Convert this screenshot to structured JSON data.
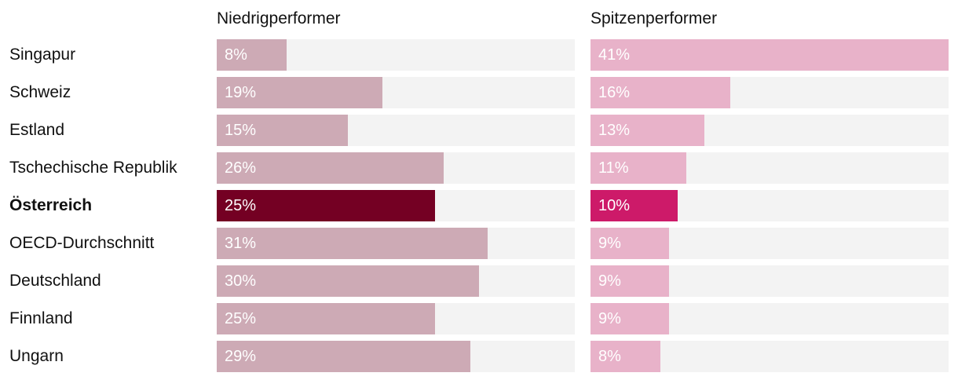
{
  "chart_data": {
    "type": "bar",
    "orientation": "horizontal",
    "value_format": "percent",
    "xlim": [
      0,
      41
    ],
    "categories": [
      "Singapur",
      "Schweiz",
      "Estland",
      "Tschechische Republik",
      "Österreich",
      "OECD-Durchschnitt",
      "Deutschland",
      "Finnland",
      "Ungarn"
    ],
    "highlight_category": "Österreich",
    "series": [
      {
        "name": "Niedrigperformer",
        "values": [
          8,
          19,
          15,
          26,
          25,
          31,
          30,
          25,
          29
        ],
        "color": "#cdaab5",
        "highlight_color": "#740023"
      },
      {
        "name": "Spitzenperformer",
        "values": [
          41,
          16,
          13,
          11,
          10,
          9,
          9,
          9,
          8
        ],
        "color": "#e8b2c9",
        "highlight_color": "#cd1a69"
      }
    ],
    "track_color": "#f3f3f3",
    "title": "",
    "xlabel": "",
    "ylabel": "",
    "grid": false,
    "legend": "none"
  }
}
